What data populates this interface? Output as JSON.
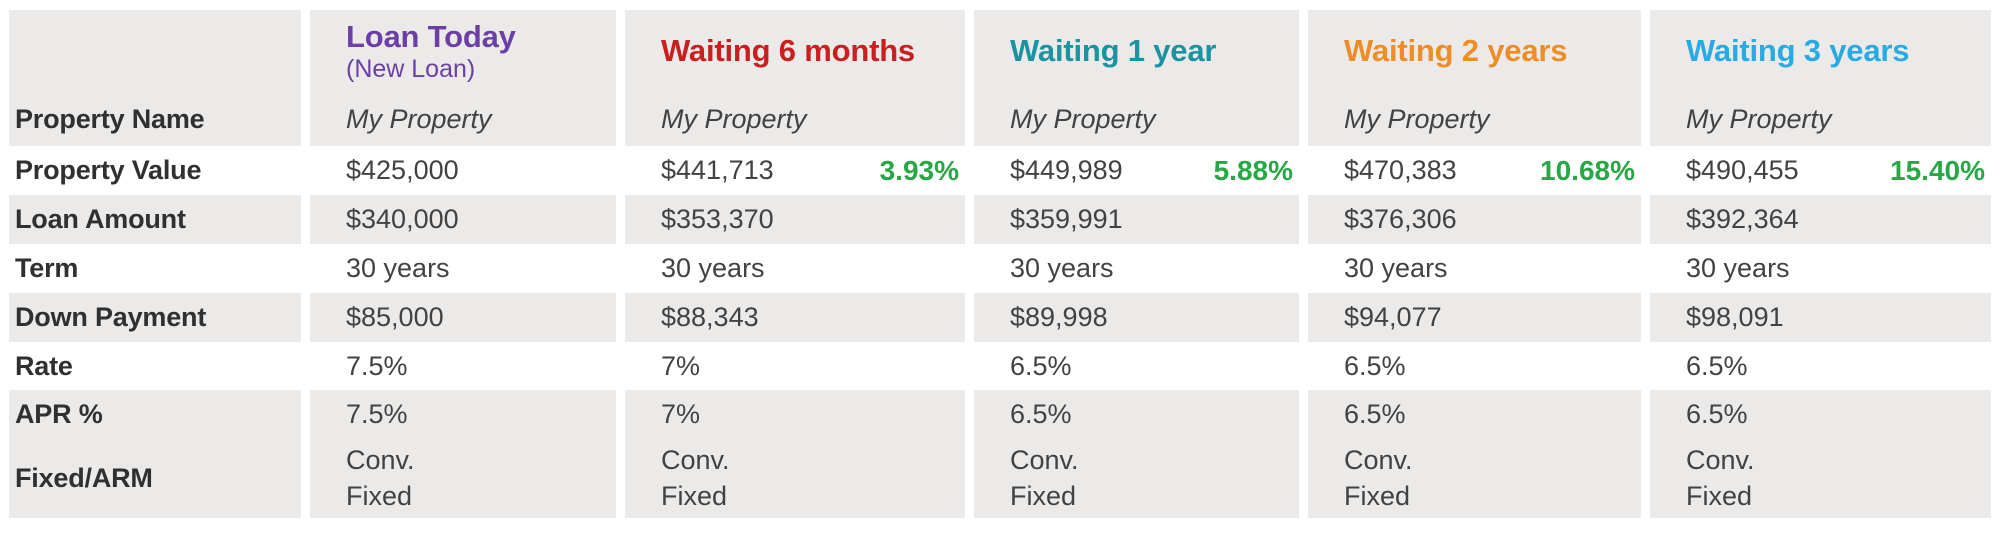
{
  "colors": {
    "stripe": "#ebeae9",
    "label-color": "#303030",
    "value-color": "#424242",
    "positive": "#27a844"
  },
  "table": {
    "row_labels": {
      "property_name": "Property Name",
      "property_value": "Property Value",
      "loan_amount": "Loan Amount",
      "term": "Term",
      "down_payment": "Down Payment",
      "rate": "Rate",
      "apr": "APR %",
      "fixed_arm": "Fixed/ARM"
    },
    "columns": [
      {
        "title": "Loan Today",
        "subtitle": "(New Loan)",
        "title_color": "#6b3fa6",
        "property_name": "My Property",
        "property_value": "$425,000",
        "appreciation": "",
        "loan_amount": "$340,000",
        "term": "30 years",
        "down_payment": "$85,000",
        "rate": "7.5%",
        "apr": "7.5%",
        "loan_type_line1": "Conv.",
        "loan_type_line2": "Fixed"
      },
      {
        "title": "Waiting 6 months",
        "subtitle": "",
        "title_color": "#c9201f",
        "property_name": "My Property",
        "property_value": "$441,713",
        "appreciation": "3.93%",
        "loan_amount": "$353,370",
        "term": "30 years",
        "down_payment": "$88,343",
        "rate": "7%",
        "apr": "7%",
        "loan_type_line1": "Conv.",
        "loan_type_line2": "Fixed"
      },
      {
        "title": "Waiting 1 year",
        "subtitle": "",
        "title_color": "#1b93a1",
        "property_name": "My Property",
        "property_value": "$449,989",
        "appreciation": "5.88%",
        "loan_amount": "$359,991",
        "term": "30 years",
        "down_payment": "$89,998",
        "rate": "6.5%",
        "apr": "6.5%",
        "loan_type_line1": "Conv.",
        "loan_type_line2": "Fixed"
      },
      {
        "title": "Waiting 2 years",
        "subtitle": "",
        "title_color": "#ee8d25",
        "property_name": "My Property",
        "property_value": "$470,383",
        "appreciation": "10.68%",
        "loan_amount": "$376,306",
        "term": "30 years",
        "down_payment": "$94,077",
        "rate": "6.5%",
        "apr": "6.5%",
        "loan_type_line1": "Conv.",
        "loan_type_line2": "Fixed"
      },
      {
        "title": "Waiting 3 years",
        "subtitle": "",
        "title_color": "#29abe2",
        "property_name": "My Property",
        "property_value": "$490,455",
        "appreciation": "15.40%",
        "loan_amount": "$392,364",
        "term": "30 years",
        "down_payment": "$98,091",
        "rate": "6.5%",
        "apr": "6.5%",
        "loan_type_line1": "Conv.",
        "loan_type_line2": "Fixed"
      }
    ]
  }
}
